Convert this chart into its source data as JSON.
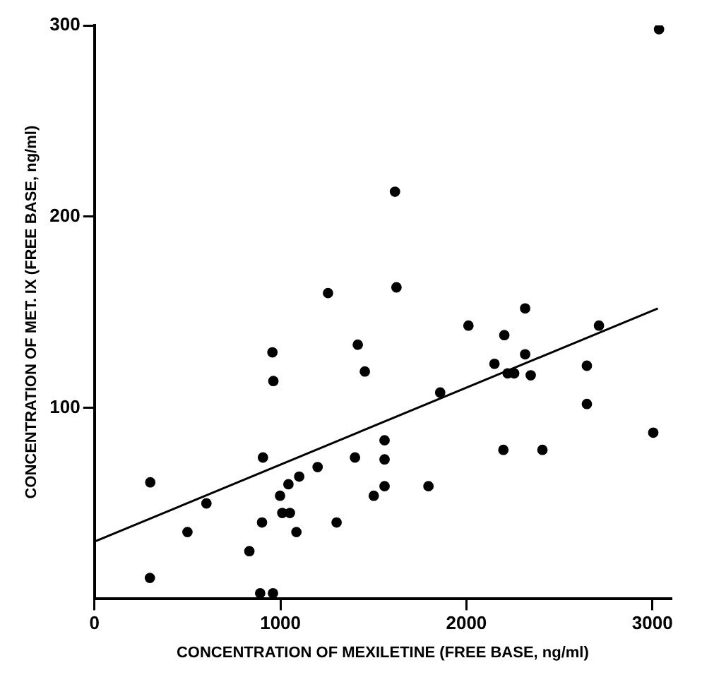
{
  "chart_data": {
    "type": "scatter",
    "xlabel": "CONCENTRATION OF MEXILETINE (FREE BASE, ng/ml)",
    "ylabel": "CONCENTRATION OF MET. IX (FREE BASE, ng/ml)",
    "xlim": [
      0,
      3100
    ],
    "xticks": [
      0,
      1000,
      2000,
      3000
    ],
    "ylim": [
      0,
      300
    ],
    "yticks": [
      100,
      200,
      300
    ],
    "grid": false,
    "legend": false,
    "marker": "circle",
    "series": [
      {
        "type": "scatter",
        "color": "#000000",
        "x": [
          3036,
          1616,
          1624,
          2316,
          1256,
          957,
          1416,
          1454,
          962,
          906,
          1401,
          1200,
          1101,
          1043,
          998,
          1502,
          1010,
          1051,
          901,
          1302,
          1086,
          833,
          300,
          602,
          500,
          298,
          891,
          960,
          1560,
          1560,
          1560,
          1796,
          1859,
          2011,
          2204,
          2316,
          2151,
          2222,
          2257,
          2346,
          2199,
          2409,
          2648,
          2713,
          2648,
          3005
        ],
        "values": [
          298,
          213,
          163,
          152,
          160,
          129,
          133,
          119,
          114,
          74,
          74,
          69,
          64,
          60,
          54,
          54,
          45,
          45,
          40,
          40,
          35,
          25,
          61,
          50,
          35,
          11,
          3,
          3,
          83,
          73,
          59,
          59,
          108,
          143,
          138,
          128,
          123,
          118,
          118,
          117,
          78,
          78,
          122,
          143,
          102,
          87
        ]
      },
      {
        "type": "line",
        "color": "#000000",
        "marker": "none",
        "x": [
          0,
          3030
        ],
        "values": [
          30,
          152
        ]
      }
    ]
  }
}
